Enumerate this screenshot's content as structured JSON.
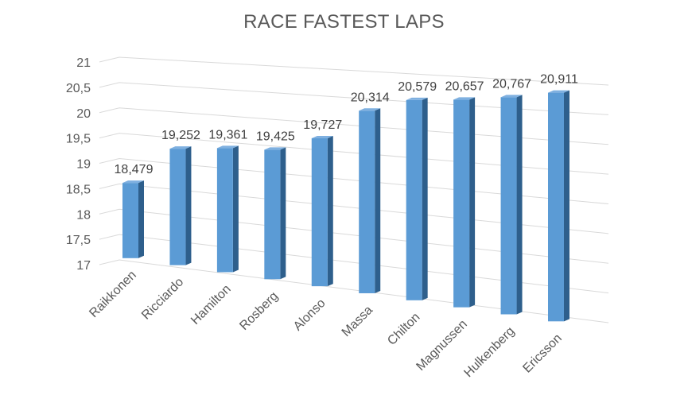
{
  "chart_data": {
    "type": "bar",
    "title": "RACE FASTEST LAPS",
    "categories": [
      "Raikkonen",
      "Ricciardo",
      "Hamilton",
      "Rosberg",
      "Alonso",
      "Massa",
      "Chilton",
      "Magnussen",
      "Hulkenberg",
      "Ericsson"
    ],
    "values": [
      18.479,
      19.252,
      19.361,
      19.425,
      19.727,
      20.314,
      20.579,
      20.657,
      20.767,
      20.911
    ],
    "data_labels": [
      "18,479",
      "19,252",
      "19,361",
      "19,425",
      "19,727",
      "20,314",
      "20,579",
      "20,657",
      "20,767",
      "20,911"
    ],
    "y_ticks": [
      "17",
      "17,5",
      "18",
      "18,5",
      "19",
      "19,5",
      "20",
      "20,5",
      "21"
    ],
    "ylim": [
      17,
      21
    ],
    "grid": true,
    "style": "3d-column",
    "colors": {
      "bar_front": "#5b9bd5",
      "bar_side": "#2e5f8c",
      "bar_top": "#7fb0e0"
    }
  }
}
